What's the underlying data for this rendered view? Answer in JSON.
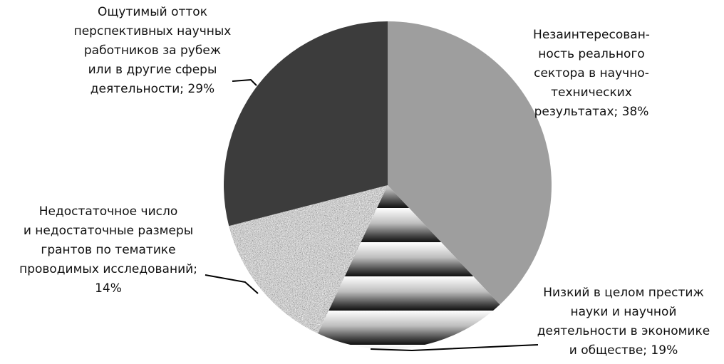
{
  "chart_data": {
    "type": "pie",
    "title": "",
    "slices": [
      {
        "label_lines": [
          "Незаинтересован-",
          "ность реального",
          "сектора в научно-",
          "технических",
          "результатах; 38%"
        ],
        "value": 38,
        "fill": "#9e9e9e",
        "pattern": "solid"
      },
      {
        "label_lines": [
          "Низкий в целом престиж",
          "науки и научной",
          "деятельности в экономике",
          "и обществе; 19%"
        ],
        "value": 19,
        "fill": "#5a5a5a",
        "pattern": "horizontal-gradient-bands"
      },
      {
        "label_lines": [
          "Недостаточное число",
          "и недостаточные размеры",
          "грантов по тематике",
          "проводимых исследований;",
          "14%"
        ],
        "value": 14,
        "fill": "#8a8a8a",
        "pattern": "noise"
      },
      {
        "label_lines": [
          "Ощутимый отток",
          "перспективных научных",
          "работников за рубеж",
          "или в другие сферы",
          "деятельности; 29%"
        ],
        "value": 29,
        "fill": "#3c3c3c",
        "pattern": "solid"
      }
    ]
  }
}
